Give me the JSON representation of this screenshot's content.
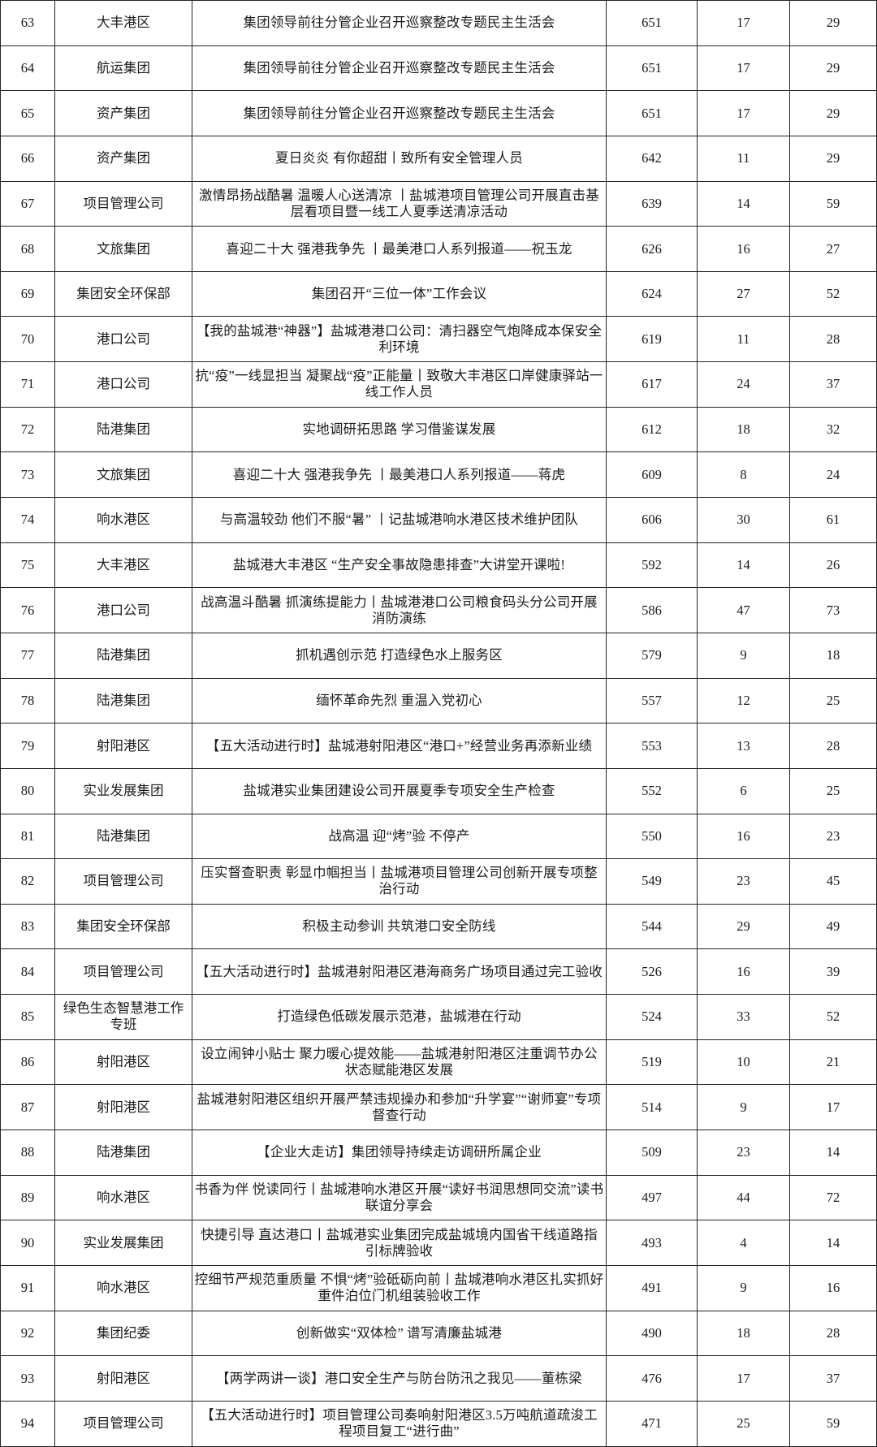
{
  "table": {
    "rows": [
      {
        "no": "63",
        "unit": "大丰港区",
        "title": "集团领导前往分管企业召开巡察整改专题民主生活会",
        "reads": "651",
        "likes": "17",
        "shares": "29"
      },
      {
        "no": "64",
        "unit": "航运集团",
        "title": "集团领导前往分管企业召开巡察整改专题民主生活会",
        "reads": "651",
        "likes": "17",
        "shares": "29"
      },
      {
        "no": "65",
        "unit": "资产集团",
        "title": "集团领导前往分管企业召开巡察整改专题民主生活会",
        "reads": "651",
        "likes": "17",
        "shares": "29"
      },
      {
        "no": "66",
        "unit": "资产集团",
        "title": "夏日炎炎 有你超甜丨致所有安全管理人员",
        "reads": "642",
        "likes": "11",
        "shares": "29"
      },
      {
        "no": "67",
        "unit": "项目管理公司",
        "title": "激情昂扬战酷暑 温暖人心送清凉 丨盐城港项目管理公司开展直击基层看项目暨一线工人夏季送清凉活动",
        "reads": "639",
        "likes": "14",
        "shares": "59"
      },
      {
        "no": "68",
        "unit": "文旅集团",
        "title": "喜迎二十大 强港我争先 丨最美港口人系列报道——祝玉龙",
        "reads": "626",
        "likes": "16",
        "shares": "27"
      },
      {
        "no": "69",
        "unit": "集团安全环保部",
        "title": "集团召开“三位一体”工作会议",
        "reads": "624",
        "likes": "27",
        "shares": "52"
      },
      {
        "no": "70",
        "unit": "港口公司",
        "title": "【我的盐城港“神器”】盐城港港口公司：清扫器空气炮降成本保安全利环境",
        "reads": "619",
        "likes": "11",
        "shares": "28"
      },
      {
        "no": "71",
        "unit": "港口公司",
        "title": "抗“疫”一线显担当 凝聚战“疫”正能量丨致敬大丰港区口岸健康驿站一线工作人员",
        "reads": "617",
        "likes": "24",
        "shares": "37"
      },
      {
        "no": "72",
        "unit": "陆港集团",
        "title": "实地调研拓思路 学习借鉴谋发展",
        "reads": "612",
        "likes": "18",
        "shares": "32"
      },
      {
        "no": "73",
        "unit": "文旅集团",
        "title": "喜迎二十大 强港我争先 丨最美港口人系列报道——蒋虎",
        "reads": "609",
        "likes": "8",
        "shares": "24"
      },
      {
        "no": "74",
        "unit": "响水港区",
        "title": "与高温较劲 他们不服“暑” 丨记盐城港响水港区技术维护团队",
        "reads": "606",
        "likes": "30",
        "shares": "61"
      },
      {
        "no": "75",
        "unit": "大丰港区",
        "title": "盐城港大丰港区 “生产安全事故隐患排查”大讲堂开课啦!",
        "reads": "592",
        "likes": "14",
        "shares": "26"
      },
      {
        "no": "76",
        "unit": "港口公司",
        "title": "战高温斗酷暑 抓演练提能力丨盐城港港口公司粮食码头分公司开展消防演练",
        "reads": "586",
        "likes": "47",
        "shares": "73"
      },
      {
        "no": "77",
        "unit": "陆港集团",
        "title": "抓机遇创示范 打造绿色水上服务区",
        "reads": "579",
        "likes": "9",
        "shares": "18"
      },
      {
        "no": "78",
        "unit": "陆港集团",
        "title": "缅怀革命先烈 重温入党初心",
        "reads": "557",
        "likes": "12",
        "shares": "25"
      },
      {
        "no": "79",
        "unit": "射阳港区",
        "title": "【五大活动进行时】盐城港射阳港区“港口+”经营业务再添新业绩",
        "reads": "553",
        "likes": "13",
        "shares": "28"
      },
      {
        "no": "80",
        "unit": "实业发展集团",
        "title": "盐城港实业集团建设公司开展夏季专项安全生产检查",
        "reads": "552",
        "likes": "6",
        "shares": "25"
      },
      {
        "no": "81",
        "unit": "陆港集团",
        "title": "战高温 迎“烤”验 不停产",
        "reads": "550",
        "likes": "16",
        "shares": "23"
      },
      {
        "no": "82",
        "unit": "项目管理公司",
        "title": "压实督查职责 彰显巾帼担当丨盐城港项目管理公司创新开展专项整治行动",
        "reads": "549",
        "likes": "23",
        "shares": "45"
      },
      {
        "no": "83",
        "unit": "集团安全环保部",
        "title": "积极主动参训 共筑港口安全防线",
        "reads": "544",
        "likes": "29",
        "shares": "49"
      },
      {
        "no": "84",
        "unit": "项目管理公司",
        "title": "【五大活动进行时】盐城港射阳港区港海商务广场项目通过完工验收",
        "reads": "526",
        "likes": "16",
        "shares": "39"
      },
      {
        "no": "85",
        "unit": "绿色生态智慧港工作专班",
        "title": "打造绿色低碳发展示范港，盐城港在行动",
        "reads": "524",
        "likes": "33",
        "shares": "52"
      },
      {
        "no": "86",
        "unit": "射阳港区",
        "title": "设立闹钟小贴士 聚力暖心提效能——盐城港射阳港区注重调节办公状态赋能港区发展",
        "reads": "519",
        "likes": "10",
        "shares": "21"
      },
      {
        "no": "87",
        "unit": "射阳港区",
        "title": "盐城港射阳港区组织开展严禁违规操办和参加“升学宴”“谢师宴”专项督查行动",
        "reads": "514",
        "likes": "9",
        "shares": "17"
      },
      {
        "no": "88",
        "unit": "陆港集团",
        "title": "【企业大走访】集团领导持续走访调研所属企业",
        "reads": "509",
        "likes": "23",
        "shares": "14"
      },
      {
        "no": "89",
        "unit": "响水港区",
        "title": "书香为伴 悦读同行丨盐城港响水港区开展“读好书润思想同交流”读书联谊分享会",
        "reads": "497",
        "likes": "44",
        "shares": "72"
      },
      {
        "no": "90",
        "unit": "实业发展集团",
        "title": "快捷引导 直达港口丨盐城港实业集团完成盐城境内国省干线道路指引标牌验收",
        "reads": "493",
        "likes": "4",
        "shares": "14"
      },
      {
        "no": "91",
        "unit": "响水港区",
        "title": "控细节严规范重质量 不惧“烤”验砥砺向前丨盐城港响水港区扎实抓好重件泊位门机组装验收工作",
        "reads": "491",
        "likes": "9",
        "shares": "16"
      },
      {
        "no": "92",
        "unit": "集团纪委",
        "title": "创新做实“双体检” 谱写清廉盐城港",
        "reads": "490",
        "likes": "18",
        "shares": "28"
      },
      {
        "no": "93",
        "unit": "射阳港区",
        "title": "【两学两讲一谈】港口安全生产与防台防汛之我见——董栋梁",
        "reads": "476",
        "likes": "17",
        "shares": "37"
      },
      {
        "no": "94",
        "unit": "项目管理公司",
        "title": "【五大活动进行时】项目管理公司奏响射阳港区3.5万吨航道疏浚工程项目复工“进行曲”",
        "reads": "471",
        "likes": "25",
        "shares": "59"
      }
    ]
  }
}
